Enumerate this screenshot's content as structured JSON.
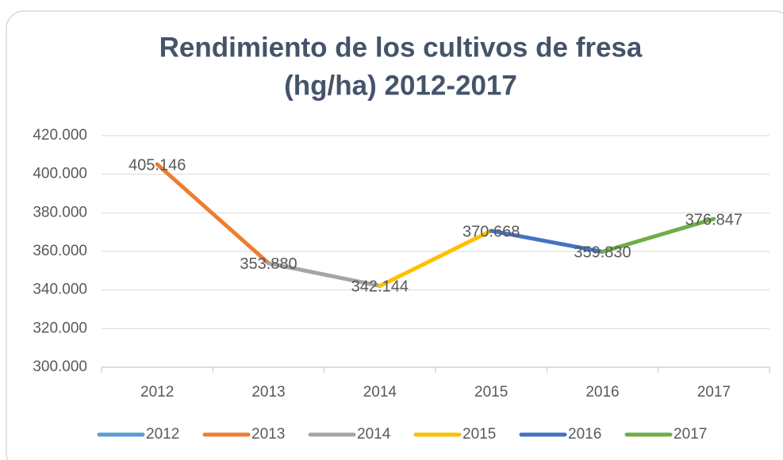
{
  "chart_data": {
    "type": "line",
    "title": "Rendimiento de los cultivos de fresa",
    "subtitle": "(hg/ha) 2012-2017",
    "categories": [
      "2012",
      "2013",
      "2014",
      "2015",
      "2016",
      "2017"
    ],
    "values": [
      405146,
      353880,
      342144,
      370668,
      359830,
      376847
    ],
    "value_labels": [
      "405.146",
      "353.880",
      "342.144",
      "370.668",
      "359.830",
      "376.847"
    ],
    "series": [
      {
        "name": "2012",
        "color": "#5b9bd5"
      },
      {
        "name": "2013",
        "color": "#ed7d31"
      },
      {
        "name": "2014",
        "color": "#a5a5a5"
      },
      {
        "name": "2015",
        "color": "#ffc000"
      },
      {
        "name": "2016",
        "color": "#4472c4"
      },
      {
        "name": "2017",
        "color": "#70ad47"
      }
    ],
    "ylim": [
      300000,
      420000
    ],
    "yticks": [
      {
        "value": 300000,
        "label": "300.000"
      },
      {
        "value": 320000,
        "label": "320.000"
      },
      {
        "value": 340000,
        "label": "340.000"
      },
      {
        "value": 360000,
        "label": "360.000"
      },
      {
        "value": 380000,
        "label": "380.000"
      },
      {
        "value": 400000,
        "label": "400.000"
      },
      {
        "value": 420000,
        "label": "420.000"
      }
    ],
    "grid": true,
    "legend": "bottom"
  }
}
